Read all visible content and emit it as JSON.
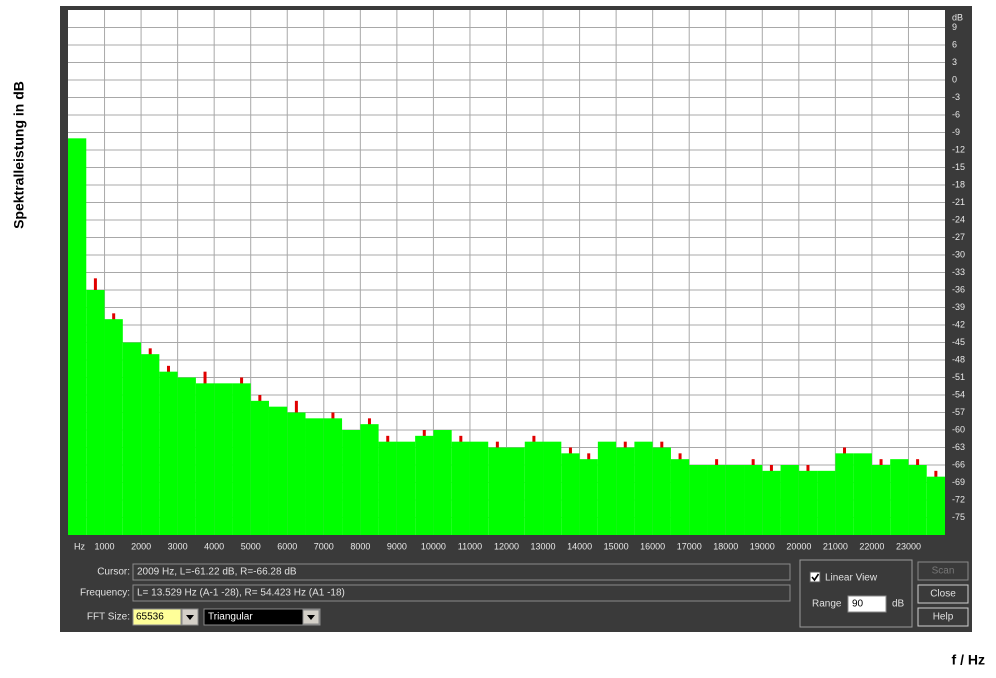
{
  "chart_data": {
    "type": "bar",
    "y_label": "Spektralleistung in dB",
    "x_label": "f / Hz",
    "x_unit": "Hz",
    "y_unit": "dB",
    "x": [
      0,
      500,
      1000,
      1500,
      2000,
      2500,
      3000,
      3500,
      4000,
      4500,
      5000,
      5500,
      6000,
      6500,
      7000,
      7500,
      8000,
      8500,
      9000,
      9500,
      10000,
      10500,
      11000,
      11500,
      12000,
      12500,
      13000,
      13500,
      14000,
      14500,
      15000,
      15500,
      16000,
      16500,
      17000,
      17500,
      18000,
      18500,
      19000,
      19500,
      20000,
      20500,
      21000,
      21500,
      22000,
      22500,
      23000,
      23500
    ],
    "series": [
      {
        "color": "#e00000",
        "values": [
          -12,
          -34,
          -40,
          -46,
          -46,
          -49,
          -52,
          -50,
          -53,
          -51,
          -54,
          -57,
          -55,
          -59,
          -57,
          -61,
          -58,
          -61,
          -63,
          -60,
          -61,
          -61,
          -63,
          -62,
          -64,
          -61,
          -63,
          -63,
          -64,
          -63,
          -62,
          -63,
          -62,
          -64,
          -67,
          -65,
          -67,
          -65,
          -66,
          -67,
          -66,
          -68,
          -63,
          -65,
          -65,
          -66,
          -65,
          -67
        ]
      },
      {
        "color": "#00ff00",
        "values": [
          -10,
          -36,
          -41,
          -45,
          -47,
          -50,
          -51,
          -52,
          -52,
          -52,
          -55,
          -56,
          -57,
          -58,
          -58,
          -60,
          -59,
          -62,
          -62,
          -61,
          -60,
          -62,
          -62,
          -63,
          -63,
          -62,
          -62,
          -64,
          -65,
          -62,
          -63,
          -62,
          -63,
          -65,
          -66,
          -66,
          -66,
          -66,
          -67,
          -66,
          -67,
          -67,
          -64,
          -64,
          -66,
          -65,
          -66,
          -68
        ]
      }
    ],
    "xlim": [
      0,
      24000
    ],
    "ylim": [
      -78,
      12
    ],
    "xticks": [
      1000,
      2000,
      3000,
      4000,
      5000,
      6000,
      7000,
      8000,
      9000,
      10000,
      11000,
      12000,
      13000,
      14000,
      15000,
      16000,
      17000,
      18000,
      19000,
      20000,
      21000,
      22000,
      23000
    ],
    "yticks": [
      9,
      6,
      3,
      0,
      -3,
      -6,
      -9,
      -12,
      -15,
      -18,
      -21,
      -24,
      -27,
      -30,
      -33,
      -36,
      -39,
      -42,
      -45,
      -48,
      -51,
      -54,
      -57,
      -60,
      -63,
      -66,
      -69,
      -72,
      -75
    ],
    "grid": true
  },
  "controls": {
    "cursor_label": "Cursor:",
    "cursor_value": "2009 Hz, L=-61.22 dB, R=-66.28 dB",
    "frequency_label": "Frequency:",
    "frequency_value": "L= 13.529 Hz (A-1 -28), R= 54.423 Hz (A1 -18)",
    "fft_size_label": "FFT Size:",
    "fft_size": "65536",
    "window": "Triangular",
    "linear_view": "Linear View",
    "range_label": "Range",
    "range_value": 90,
    "range_unit": "dB",
    "buttons": [
      "Scan",
      "Close",
      "Help"
    ]
  }
}
